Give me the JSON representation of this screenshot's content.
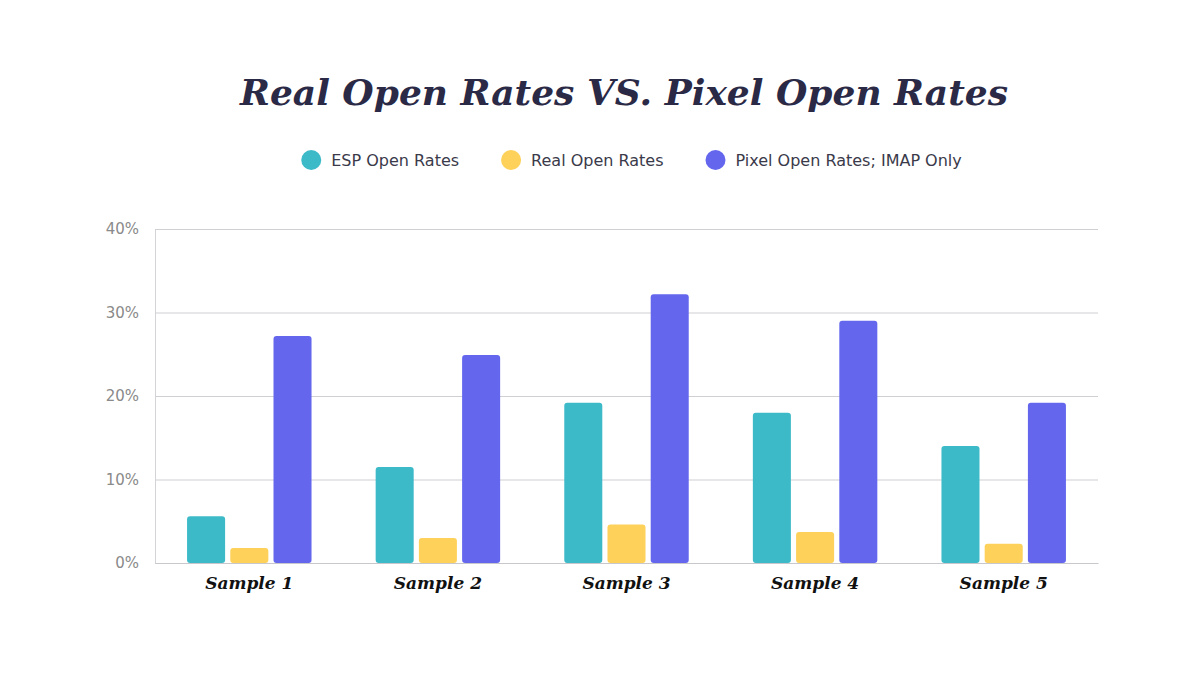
{
  "chart_data": {
    "type": "bar",
    "title": "Real Open Rates VS. Pixel Open Rates",
    "categories": [
      "Sample 1",
      "Sample 2",
      "Sample 3",
      "Sample 4",
      "Sample 5"
    ],
    "series": [
      {
        "name": "ESP Open Rates",
        "color": "#3dbac8",
        "values": [
          5.6,
          11.5,
          19.2,
          18.0,
          14.0
        ]
      },
      {
        "name": "Real Open Rates",
        "color": "#fdd15a",
        "values": [
          1.8,
          3.0,
          4.6,
          3.7,
          2.3
        ]
      },
      {
        "name": "Pixel Open Rates; IMAP Only",
        "color": "#6467ee",
        "values": [
          27.2,
          24.9,
          32.2,
          29.0,
          19.2
        ]
      }
    ],
    "ylim": [
      0,
      40
    ],
    "yticks": [
      {
        "value": 0,
        "label": "0%"
      },
      {
        "value": 10,
        "label": "10%"
      },
      {
        "value": 20,
        "label": "20%"
      },
      {
        "value": 30,
        "label": "30%"
      },
      {
        "value": 40,
        "label": "40%"
      }
    ],
    "grid": true,
    "legend": "top"
  }
}
